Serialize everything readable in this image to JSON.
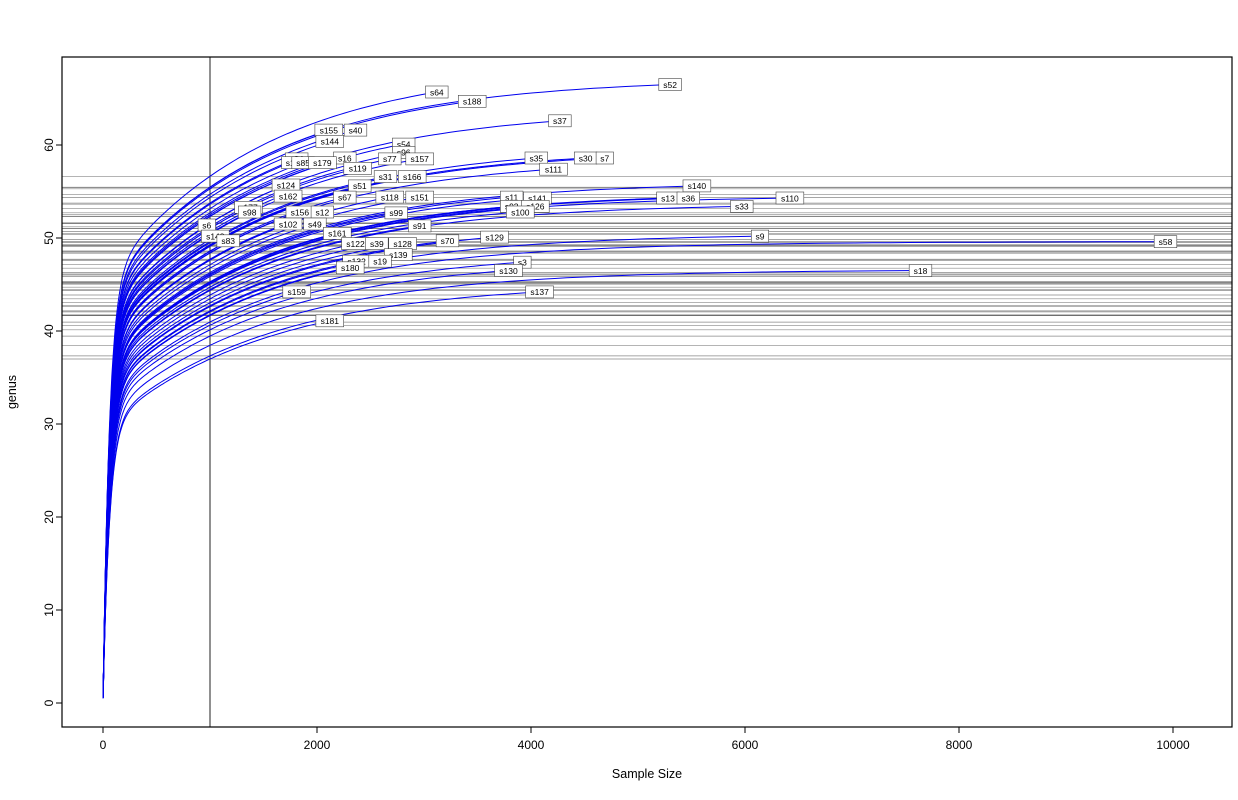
{
  "chart_data": {
    "type": "line",
    "title": "",
    "xlabel": "Sample Size",
    "ylabel": "genus",
    "x_ticks": [
      0,
      2000,
      4000,
      6000,
      8000,
      10000
    ],
    "y_ticks": [
      0,
      10,
      20,
      30,
      40,
      50,
      60
    ],
    "xlim": [
      -400,
      10550
    ],
    "ylim": [
      -2.6,
      69.5
    ],
    "grid": false,
    "legend": "none",
    "curve_color": "#0000EE",
    "reference_vline_x": 1000,
    "description": "Rarefaction curves per sample; horizontal lines mark each curve's richness at the vertical reference line; each curve endpoint carries a boxed sample label.",
    "series": [
      {
        "label": "s52",
        "x_end": 5300,
        "y_end": 66.5
      },
      {
        "label": "s64",
        "x_end": 3120,
        "y_end": 65.7
      },
      {
        "label": "s188",
        "x_end": 3450,
        "y_end": 64.7
      },
      {
        "label": "s37",
        "x_end": 4270,
        "y_end": 62.6
      },
      {
        "label": "s155",
        "x_end": 2110,
        "y_end": 61.6
      },
      {
        "label": "s40",
        "x_end": 2360,
        "y_end": 61.6
      },
      {
        "label": "s144",
        "x_end": 2120,
        "y_end": 60.4
      },
      {
        "label": "s54",
        "x_end": 2810,
        "y_end": 60.1
      },
      {
        "label": "s96",
        "x_end": 2810,
        "y_end": 59.2
      },
      {
        "label": "s34",
        "x_end": 1810,
        "y_end": 58.5
      },
      {
        "label": "s16",
        "x_end": 2260,
        "y_end": 58.6
      },
      {
        "label": "s77",
        "x_end": 2680,
        "y_end": 58.5
      },
      {
        "label": "s157",
        "x_end": 2960,
        "y_end": 58.5
      },
      {
        "label": "s35",
        "x_end": 4050,
        "y_end": 58.6
      },
      {
        "label": "s30",
        "x_end": 4510,
        "y_end": 58.6
      },
      {
        "label": "s7",
        "x_end": 4690,
        "y_end": 58.6
      },
      {
        "label": "s1",
        "x_end": 1750,
        "y_end": 58.1
      },
      {
        "label": "s85",
        "x_end": 1870,
        "y_end": 58.1
      },
      {
        "label": "s179",
        "x_end": 2050,
        "y_end": 58.1
      },
      {
        "label": "s119",
        "x_end": 2380,
        "y_end": 57.5
      },
      {
        "label": "s111",
        "x_end": 4210,
        "y_end": 57.4
      },
      {
        "label": "s31",
        "x_end": 2640,
        "y_end": 56.6
      },
      {
        "label": "s166",
        "x_end": 2890,
        "y_end": 56.6
      },
      {
        "label": "s124",
        "x_end": 1710,
        "y_end": 55.7
      },
      {
        "label": "s51",
        "x_end": 2400,
        "y_end": 55.6
      },
      {
        "label": "s140",
        "x_end": 5550,
        "y_end": 55.6
      },
      {
        "label": "s162",
        "x_end": 1730,
        "y_end": 54.5
      },
      {
        "label": "s67",
        "x_end": 2260,
        "y_end": 54.4
      },
      {
        "label": "s118",
        "x_end": 2680,
        "y_end": 54.4
      },
      {
        "label": "s151",
        "x_end": 2960,
        "y_end": 54.4
      },
      {
        "label": "s11",
        "x_end": 3820,
        "y_end": 54.4
      },
      {
        "label": "s141",
        "x_end": 4060,
        "y_end": 54.3
      },
      {
        "label": "s13",
        "x_end": 5280,
        "y_end": 54.3
      },
      {
        "label": "s36",
        "x_end": 5470,
        "y_end": 54.3
      },
      {
        "label": "s110",
        "x_end": 6420,
        "y_end": 54.3
      },
      {
        "label": "s177",
        "x_end": 1360,
        "y_end": 53.3
      },
      {
        "label": "s92",
        "x_end": 3820,
        "y_end": 53.4
      },
      {
        "label": "s126",
        "x_end": 4040,
        "y_end": 53.4
      },
      {
        "label": "s33",
        "x_end": 5970,
        "y_end": 53.4
      },
      {
        "label": "s98",
        "x_end": 1370,
        "y_end": 52.8
      },
      {
        "label": "s156",
        "x_end": 1840,
        "y_end": 52.8
      },
      {
        "label": "s12",
        "x_end": 2050,
        "y_end": 52.8
      },
      {
        "label": "s99",
        "x_end": 2740,
        "y_end": 52.7
      },
      {
        "label": "s100",
        "x_end": 3900,
        "y_end": 52.8
      },
      {
        "label": "s6",
        "x_end": 970,
        "y_end": 51.4
      },
      {
        "label": "s102",
        "x_end": 1730,
        "y_end": 51.5
      },
      {
        "label": "s49",
        "x_end": 1980,
        "y_end": 51.5
      },
      {
        "label": "s91",
        "x_end": 2960,
        "y_end": 51.3
      },
      {
        "label": "s161",
        "x_end": 2190,
        "y_end": 50.5
      },
      {
        "label": "s148",
        "x_end": 1050,
        "y_end": 50.2
      },
      {
        "label": "s129",
        "x_end": 3660,
        "y_end": 50.1
      },
      {
        "label": "s9",
        "x_end": 6140,
        "y_end": 50.2
      },
      {
        "label": "s83",
        "x_end": 1170,
        "y_end": 49.7
      },
      {
        "label": "s122",
        "x_end": 2360,
        "y_end": 49.4
      },
      {
        "label": "s39",
        "x_end": 2560,
        "y_end": 49.4
      },
      {
        "label": "s128",
        "x_end": 2800,
        "y_end": 49.4
      },
      {
        "label": "s70",
        "x_end": 3220,
        "y_end": 49.7
      },
      {
        "label": "s58",
        "x_end": 9930,
        "y_end": 49.6
      },
      {
        "label": "s139",
        "x_end": 2760,
        "y_end": 48.2
      },
      {
        "label": "s132",
        "x_end": 2370,
        "y_end": 47.5
      },
      {
        "label": "s19",
        "x_end": 2590,
        "y_end": 47.5
      },
      {
        "label": "s3",
        "x_end": 3920,
        "y_end": 47.4
      },
      {
        "label": "s180",
        "x_end": 2310,
        "y_end": 46.8
      },
      {
        "label": "s130",
        "x_end": 3790,
        "y_end": 46.5
      },
      {
        "label": "s18",
        "x_end": 7640,
        "y_end": 46.5
      },
      {
        "label": "s159",
        "x_end": 1810,
        "y_end": 44.2
      },
      {
        "label": "s137",
        "x_end": 4080,
        "y_end": 44.2
      },
      {
        "label": "s181",
        "x_end": 2120,
        "y_end": 41.1
      }
    ]
  }
}
